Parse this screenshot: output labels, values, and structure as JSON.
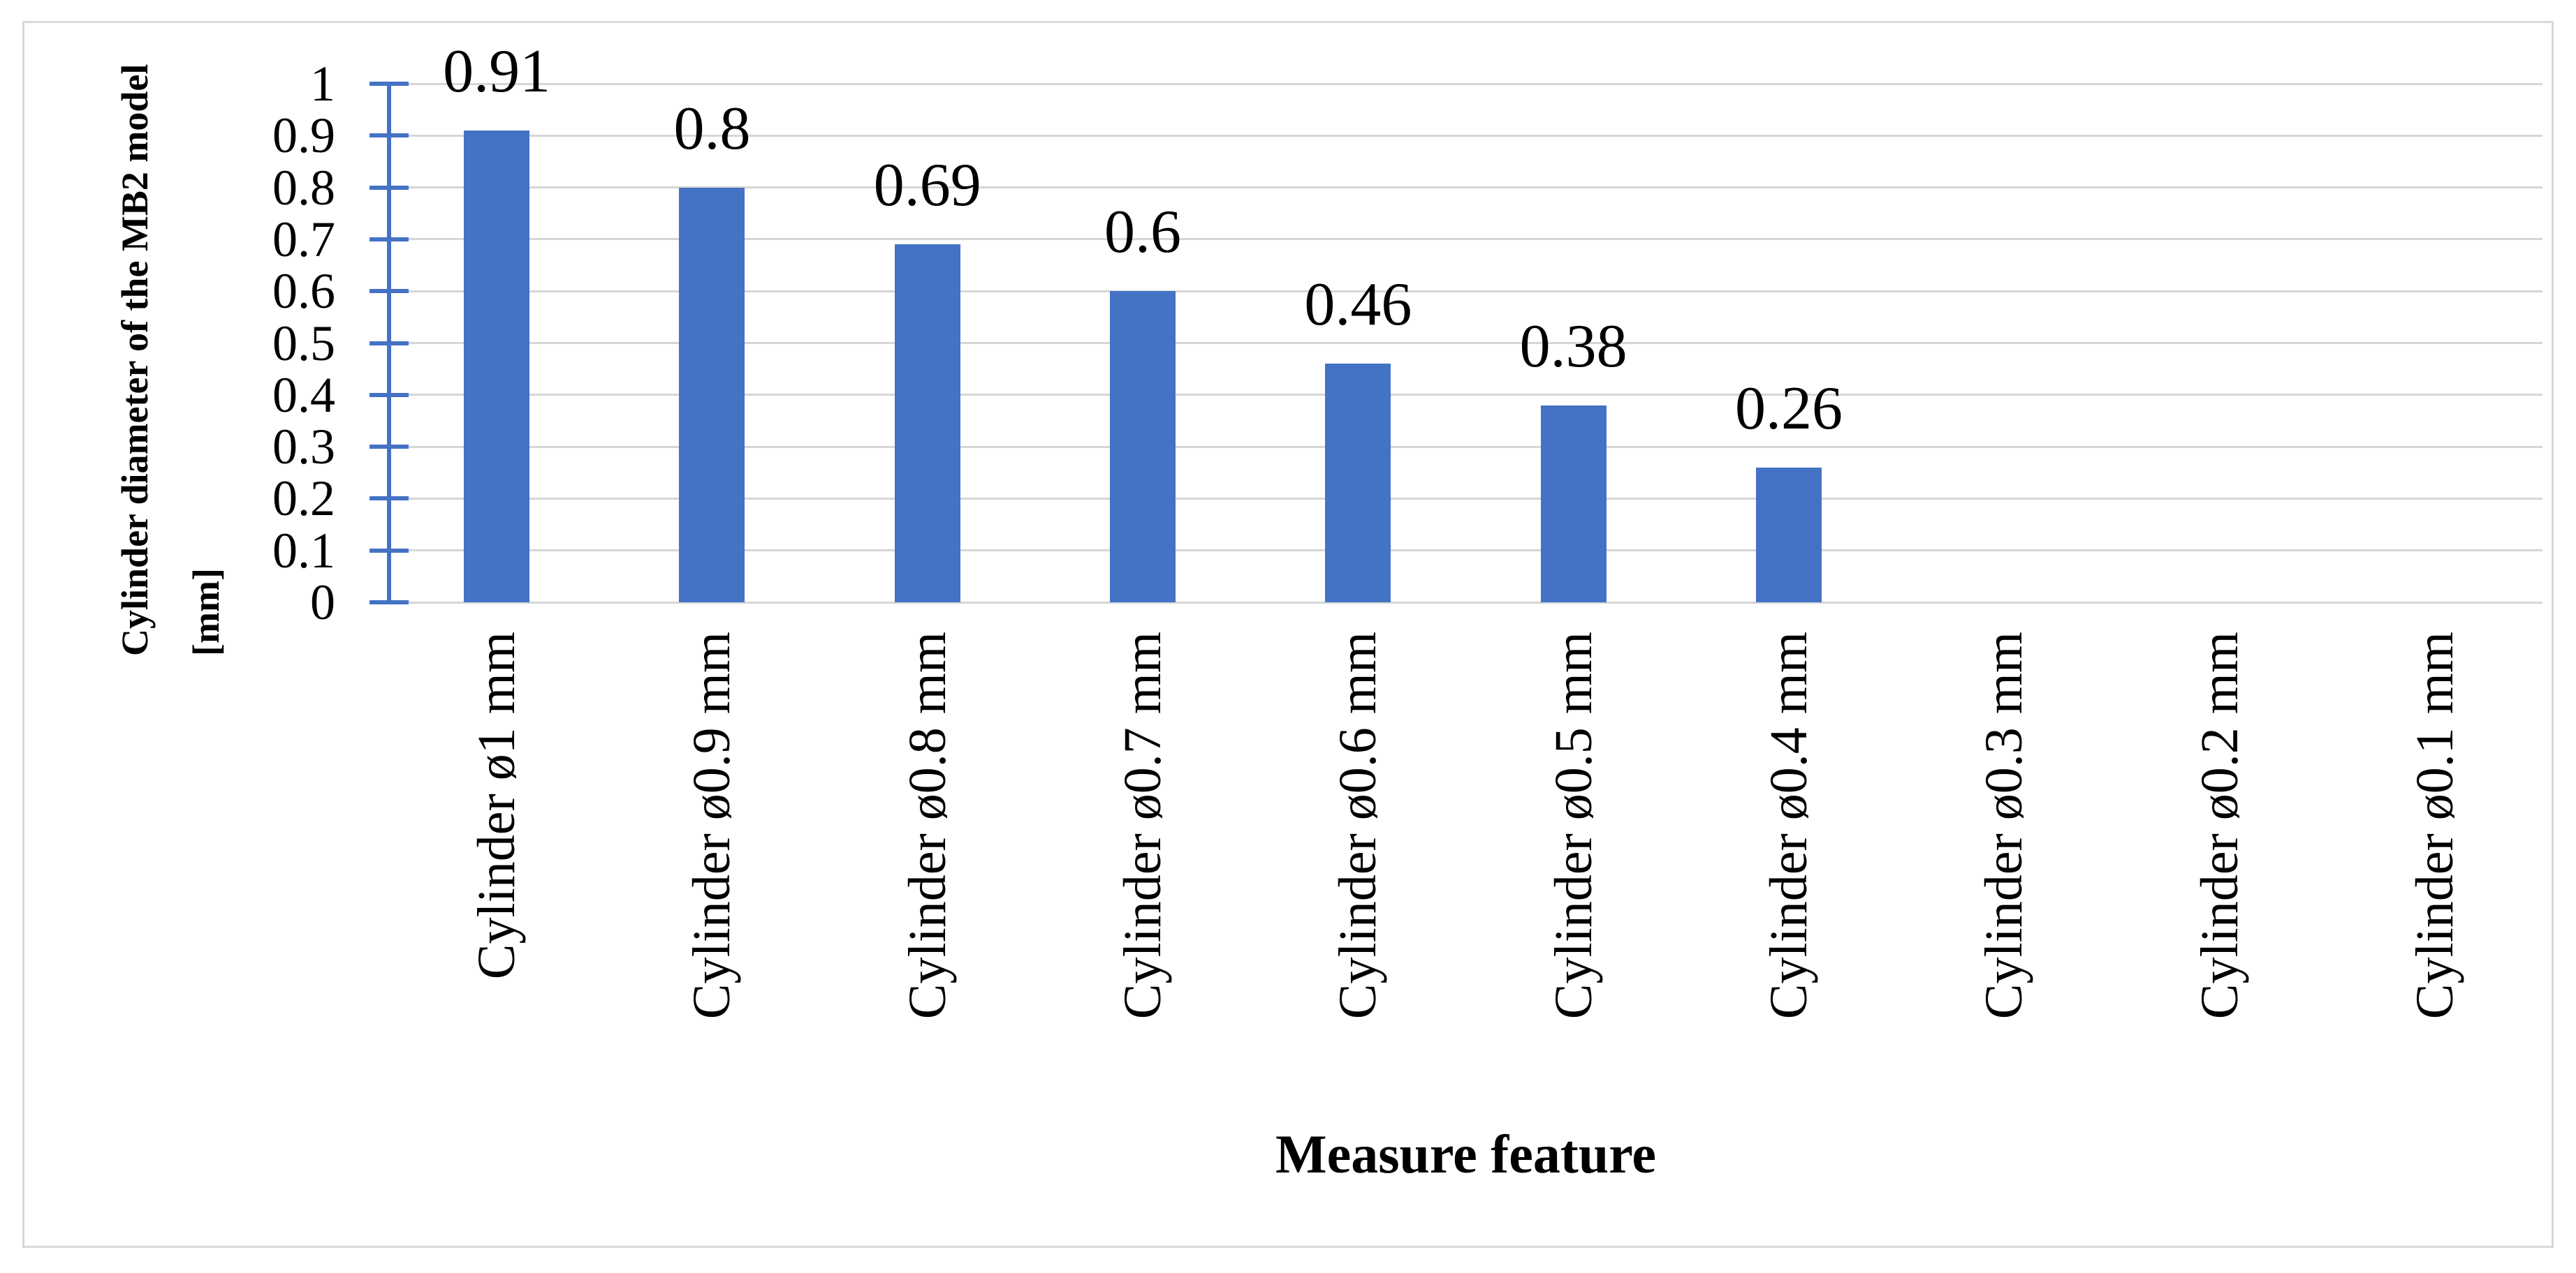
{
  "chart_data": {
    "type": "bar",
    "title": "",
    "categories": [
      "Cylinder ø1 mm",
      "Cylinder ø0.9 mm",
      "Cylinder ø0.8 mm",
      "Cylinder ø0.7 mm",
      "Cylinder ø0.6 mm",
      "Cylinder ø0.5 mm",
      "Cylinder ø0.4 mm",
      "Cylinder ø0.3 mm",
      "Cylinder ø0.2 mm",
      "Cylinder ø0.1 mm"
    ],
    "values": [
      0.91,
      0.8,
      0.69,
      0.6,
      0.46,
      0.38,
      0.26,
      0,
      0,
      0
    ],
    "data_labels": [
      "0.91",
      "0.8",
      "0.69",
      "0.6",
      "0.46",
      "0.38",
      "0.26",
      "",
      "",
      ""
    ],
    "xlabel": "Measure feature",
    "ylabel": "Cylinder diameter of the MB2 model [mm]",
    "ylabel_lines": [
      "Cylinder diameter of the MB2 model",
      "[mm]"
    ],
    "ylim": [
      0,
      1
    ],
    "ytick_step": 0.1,
    "yticks": [
      1,
      0.9,
      0.8,
      0.7,
      0.6,
      0.5,
      0.4,
      0.3,
      0.2,
      0.1,
      0
    ],
    "ytick_labels": [
      "1",
      "0.9",
      "0.8",
      "0.7",
      "0.6",
      "0.5",
      "0.4",
      "0.3",
      "0.2",
      "0.1",
      "0"
    ],
    "grid": true,
    "legend": "none",
    "colors": {
      "bar": "#4472C4",
      "axis": "#4472C4",
      "gridline": "#D6D6D6",
      "frame_border": "#D9D9D9",
      "text": "#000000"
    }
  }
}
